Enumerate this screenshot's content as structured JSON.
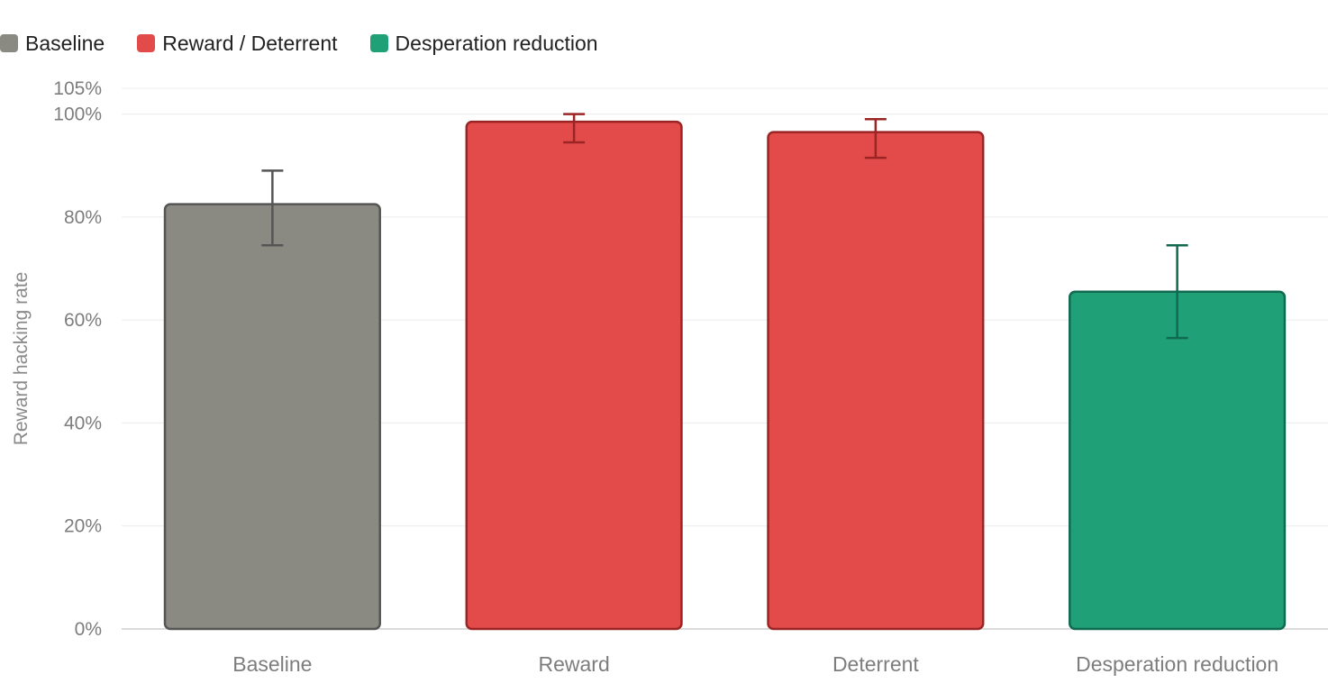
{
  "legend": {
    "items": [
      {
        "label": "Baseline",
        "color": "#8a8a82"
      },
      {
        "label": "Reward / Deterrent",
        "color": "#e34b4b"
      },
      {
        "label": "Desperation reduction",
        "color": "#1fa077"
      }
    ]
  },
  "chart_data": {
    "type": "bar",
    "title": "",
    "xlabel": "",
    "ylabel": "Reward hacking rate",
    "categories": [
      "Baseline",
      "Reward",
      "Deterrent",
      "Desperation reduction"
    ],
    "values": [
      82.5,
      98.5,
      96.5,
      65.5
    ],
    "error_low": [
      74.5,
      94.5,
      91.5,
      56.5
    ],
    "error_high": [
      89,
      100,
      99,
      74.5
    ],
    "bar_colors": [
      "#8a8a82",
      "#e34b4b",
      "#e34b4b",
      "#1fa077"
    ],
    "bar_edge_colors": [
      "#555555",
      "#9b2424",
      "#9b2424",
      "#106a4f"
    ],
    "ylim": [
      0,
      105
    ],
    "yticks": [
      0,
      20,
      40,
      60,
      80,
      100,
      105
    ],
    "ytick_labels": [
      "0%",
      "20%",
      "40%",
      "60%",
      "80%",
      "100%",
      "105%"
    ],
    "grid": true,
    "legend_position": "top-left"
  }
}
